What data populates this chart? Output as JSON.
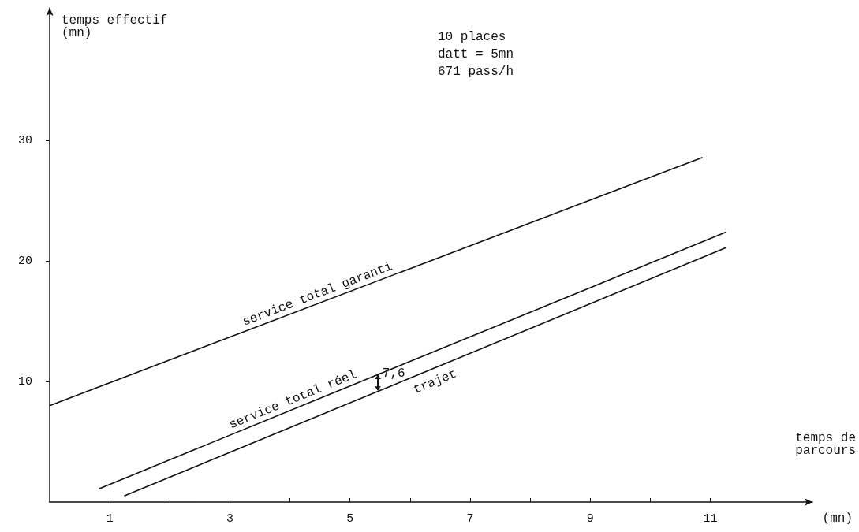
{
  "chart_data": {
    "type": "line",
    "xlabel": "temps de\nparcours",
    "ylabel": "temps effectif\n(mn)",
    "xlim": [
      0,
      12.7
    ],
    "ylim": [
      0,
      41
    ],
    "xticks": [
      1,
      {
        "value": 2,
        "label": null
      },
      3,
      {
        "value": 4,
        "label": null
      },
      5,
      {
        "value": 6,
        "label": null
      },
      7,
      {
        "value": 8,
        "label": null
      },
      9,
      {
        "value": 10,
        "label": null
      },
      11
    ],
    "yticks": [
      10,
      20,
      30
    ],
    "series": [
      {
        "name": "service total garanti",
        "color": "#111111",
        "x": [
          0,
          10.87
        ],
        "values": [
          8.0,
          28.6
        ]
      },
      {
        "name": "service total réel",
        "color": "#111111",
        "x": [
          0.82,
          11.26
        ],
        "values": [
          1.1,
          22.4
        ]
      },
      {
        "name": "trajet",
        "color": "#111111",
        "x": [
          1.24,
          11.26
        ],
        "values": [
          0.5,
          21.1
        ]
      }
    ],
    "annotations": [
      "10 places\ndatt = 5mn\n671 pass/h",
      "(mn)",
      "7,6"
    ],
    "grid": false,
    "legend": false,
    "marker": "none",
    "line_style": "solid"
  }
}
